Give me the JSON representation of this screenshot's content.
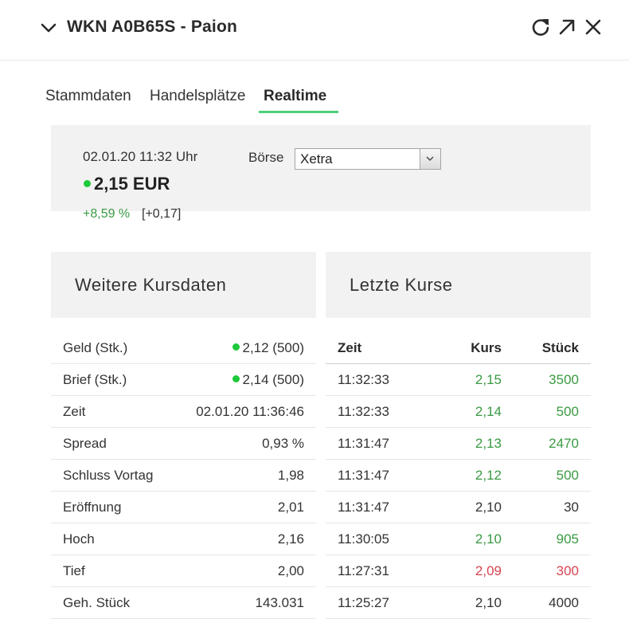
{
  "header": {
    "title": "WKN A0B65S - Paion",
    "icons": [
      "chevron-down-icon",
      "refresh-icon",
      "popout-arrow-icon",
      "close-icon"
    ]
  },
  "tabs": [
    {
      "label": "Stammdaten",
      "active": false
    },
    {
      "label": "Handelsplätze",
      "active": false
    },
    {
      "label": "Realtime",
      "active": true
    }
  ],
  "quote": {
    "datetime": "02.01.20  11:32 Uhr",
    "price": "2,15 EUR",
    "change_pct": "+8,59 %",
    "change_abs": "[+0,17]",
    "boerse_label": "Börse",
    "boerse_selected": "Xetra"
  },
  "kursdaten": {
    "title": "Weitere Kursdaten",
    "rows": [
      {
        "label": "Geld (Stk.)",
        "value": "2,12 (500)",
        "dot": true
      },
      {
        "label": "Brief (Stk.)",
        "value": "2,14 (500)",
        "dot": true
      },
      {
        "label": "Zeit",
        "value": "02.01.20 11:36:46",
        "dot": false
      },
      {
        "label": "Spread",
        "value": "0,93 %",
        "dot": false
      },
      {
        "label": "Schluss Vortag",
        "value": "1,98",
        "dot": false
      },
      {
        "label": "Eröffnung",
        "value": "2,01",
        "dot": false
      },
      {
        "label": "Hoch",
        "value": "2,16",
        "dot": false
      },
      {
        "label": "Tief",
        "value": "2,00",
        "dot": false
      },
      {
        "label": "Geh. Stück",
        "value": "143.031",
        "dot": false
      }
    ]
  },
  "letzte_kurse": {
    "title": "Letzte Kurse",
    "columns": [
      "Zeit",
      "Kurs",
      "Stück"
    ],
    "rows": [
      {
        "zeit": "11:32:33",
        "kurs": "2,15",
        "stueck": "3500",
        "trend": "up"
      },
      {
        "zeit": "11:32:33",
        "kurs": "2,14",
        "stueck": "500",
        "trend": "up"
      },
      {
        "zeit": "11:31:47",
        "kurs": "2,13",
        "stueck": "2470",
        "trend": "up"
      },
      {
        "zeit": "11:31:47",
        "kurs": "2,12",
        "stueck": "500",
        "trend": "up"
      },
      {
        "zeit": "11:31:47",
        "kurs": "2,10",
        "stueck": "30",
        "trend": "neutral"
      },
      {
        "zeit": "11:30:05",
        "kurs": "2,10",
        "stueck": "905",
        "trend": "up"
      },
      {
        "zeit": "11:27:31",
        "kurs": "2,09",
        "stueck": "300",
        "trend": "down"
      },
      {
        "zeit": "11:25:27",
        "kurs": "2,10",
        "stueck": "4000",
        "trend": "neutral"
      }
    ]
  },
  "colors": {
    "up": "#3a9a43",
    "down": "#d64550",
    "live_dot": "#1ec93b",
    "tab_active_underline": "#4cd07a",
    "panel_bg": "#f2f2f2"
  }
}
